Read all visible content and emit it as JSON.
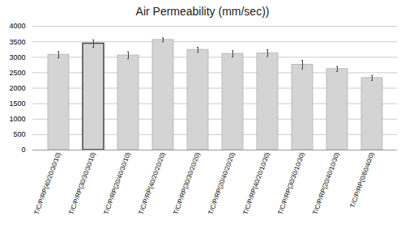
{
  "chart_data": {
    "type": "bar",
    "title": "Air Permeability (mm/sec))",
    "categories": [
      "T/C/P/RP(40/20/30/10)",
      "T/C/P/RP(30/30/30/10)",
      "T/C/P/RP(20/40/30/10)",
      "T/C/P/RP(40/20/20/20)",
      "T/C/P/RP(30/30/20/20)",
      "T/C/P/RP(20/40/20/20)",
      "T/C/P/RP(40/20/10/30)",
      "T/C/P/RP(30/30/10/30)",
      "T/C/P/RP(20/40/10/30)",
      "T/C/P/RP(0/60/40/0)"
    ],
    "values": [
      3080,
      3440,
      3060,
      3560,
      3240,
      3110,
      3130,
      2760,
      2620,
      2330
    ],
    "errors": [
      100,
      120,
      110,
      60,
      80,
      100,
      110,
      140,
      80,
      80
    ],
    "color": "#d4d4d4",
    "ylim": [
      0,
      4000
    ],
    "yticks": [
      0,
      500,
      1000,
      1500,
      2000,
      2500,
      3000,
      3500,
      4000
    ],
    "grid": true
  }
}
